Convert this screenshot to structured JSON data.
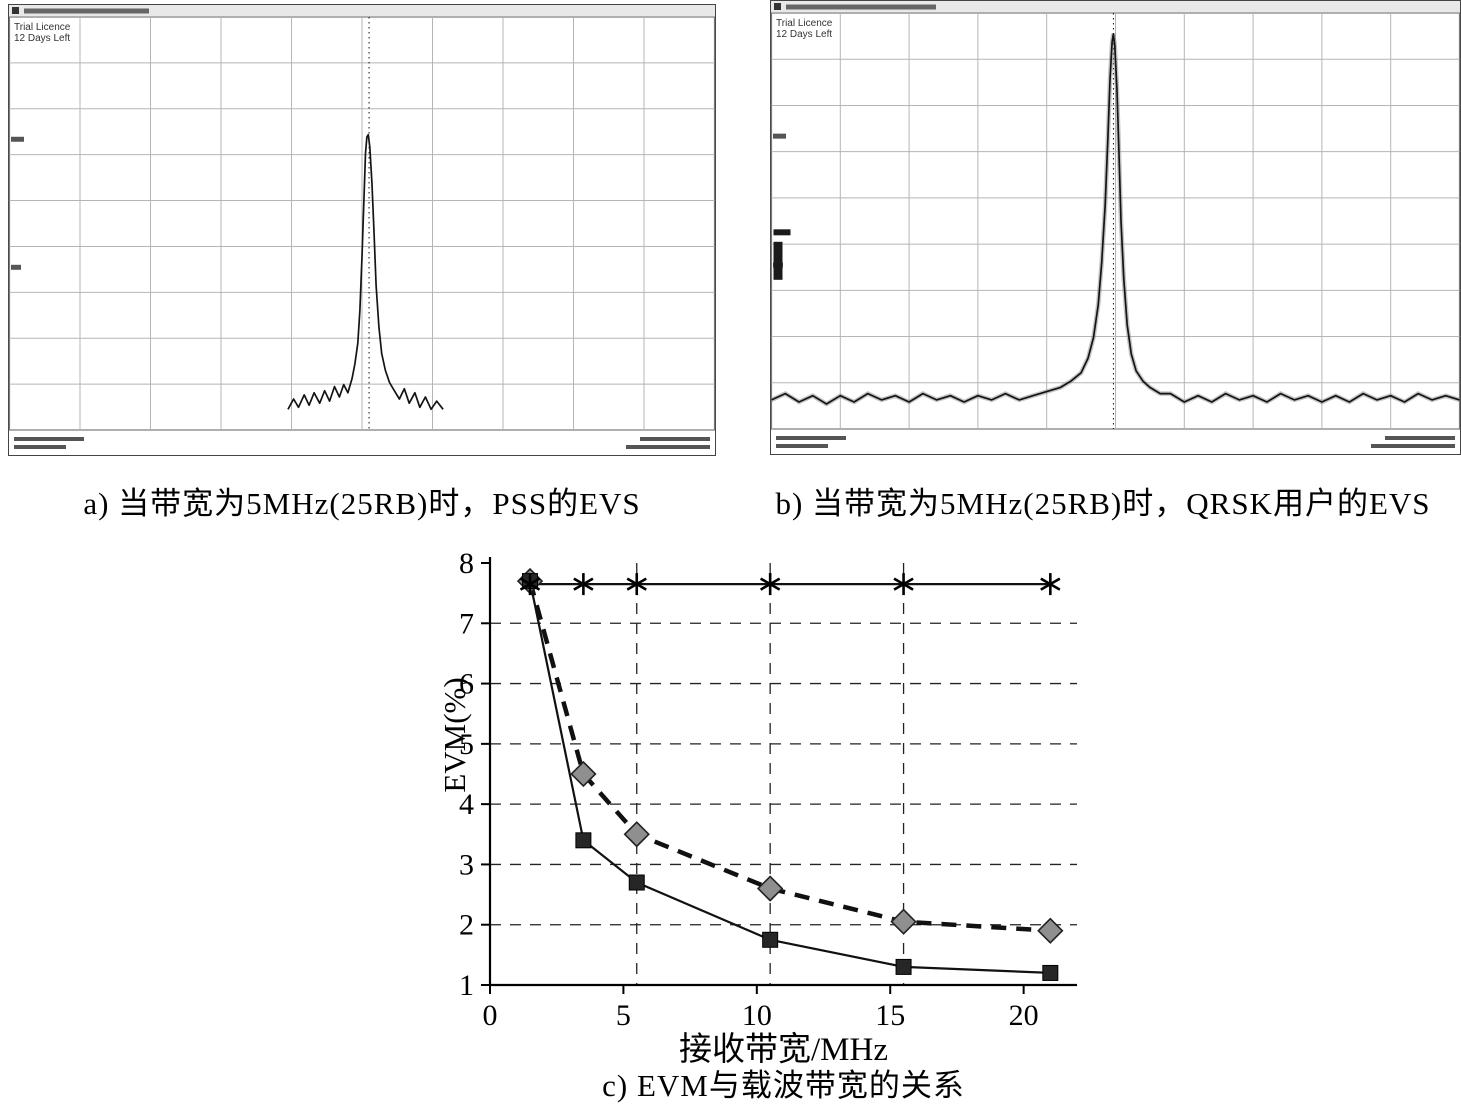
{
  "figure": {
    "captions": {
      "a": "a) 当带宽为5MHz(25RB)时，PSS的EVS",
      "b": "b) 当带宽为5MHz(25RB)时，QRSK用户的EVS",
      "c": "c) EVM与载波带宽的关系"
    }
  },
  "chart_data": [
    {
      "id": "spectrum_a",
      "type": "line",
      "license_text": [
        "Trial Licence",
        "12 Days Left"
      ],
      "grid": {
        "cols": 10,
        "rows": 9
      },
      "marker_x": 0.51,
      "fuzzy": false,
      "blob": false,
      "trace": [
        [
          0.395,
          0.95
        ],
        [
          0.403,
          0.925
        ],
        [
          0.41,
          0.945
        ],
        [
          0.418,
          0.915
        ],
        [
          0.425,
          0.94
        ],
        [
          0.432,
          0.91
        ],
        [
          0.44,
          0.935
        ],
        [
          0.447,
          0.905
        ],
        [
          0.454,
          0.93
        ],
        [
          0.461,
          0.895
        ],
        [
          0.468,
          0.92
        ],
        [
          0.474,
          0.89
        ],
        [
          0.48,
          0.91
        ],
        [
          0.486,
          0.875
        ],
        [
          0.49,
          0.84
        ],
        [
          0.494,
          0.79
        ],
        [
          0.497,
          0.71
        ],
        [
          0.5,
          0.58
        ],
        [
          0.503,
          0.43
        ],
        [
          0.505,
          0.33
        ],
        [
          0.507,
          0.29
        ],
        [
          0.509,
          0.285
        ],
        [
          0.511,
          0.315
        ],
        [
          0.514,
          0.4
        ],
        [
          0.517,
          0.52
        ],
        [
          0.52,
          0.65
        ],
        [
          0.524,
          0.75
        ],
        [
          0.528,
          0.815
        ],
        [
          0.533,
          0.855
        ],
        [
          0.539,
          0.885
        ],
        [
          0.546,
          0.905
        ],
        [
          0.553,
          0.925
        ],
        [
          0.56,
          0.9
        ],
        [
          0.567,
          0.935
        ],
        [
          0.575,
          0.91
        ],
        [
          0.582,
          0.945
        ],
        [
          0.59,
          0.92
        ],
        [
          0.598,
          0.95
        ],
        [
          0.606,
          0.93
        ],
        [
          0.615,
          0.95
        ]
      ]
    },
    {
      "id": "spectrum_b",
      "type": "line",
      "license_text": [
        "Trial Licence",
        "12 Days Left"
      ],
      "grid": {
        "cols": 10,
        "rows": 9
      },
      "marker_x": 0.497,
      "fuzzy": true,
      "blob": true,
      "trace": [
        [
          0.0,
          0.93
        ],
        [
          0.02,
          0.915
        ],
        [
          0.04,
          0.935
        ],
        [
          0.06,
          0.92
        ],
        [
          0.08,
          0.94
        ],
        [
          0.1,
          0.92
        ],
        [
          0.12,
          0.935
        ],
        [
          0.14,
          0.915
        ],
        [
          0.16,
          0.93
        ],
        [
          0.18,
          0.92
        ],
        [
          0.2,
          0.935
        ],
        [
          0.22,
          0.915
        ],
        [
          0.24,
          0.93
        ],
        [
          0.26,
          0.92
        ],
        [
          0.28,
          0.935
        ],
        [
          0.3,
          0.92
        ],
        [
          0.32,
          0.93
        ],
        [
          0.34,
          0.915
        ],
        [
          0.36,
          0.93
        ],
        [
          0.38,
          0.92
        ],
        [
          0.4,
          0.91
        ],
        [
          0.42,
          0.9
        ],
        [
          0.435,
          0.885
        ],
        [
          0.45,
          0.865
        ],
        [
          0.46,
          0.83
        ],
        [
          0.468,
          0.78
        ],
        [
          0.475,
          0.7
        ],
        [
          0.48,
          0.6
        ],
        [
          0.485,
          0.46
        ],
        [
          0.489,
          0.3
        ],
        [
          0.492,
          0.16
        ],
        [
          0.495,
          0.07
        ],
        [
          0.497,
          0.05
        ],
        [
          0.499,
          0.08
        ],
        [
          0.502,
          0.18
        ],
        [
          0.505,
          0.33
        ],
        [
          0.508,
          0.5
        ],
        [
          0.512,
          0.64
        ],
        [
          0.517,
          0.75
        ],
        [
          0.523,
          0.82
        ],
        [
          0.53,
          0.86
        ],
        [
          0.54,
          0.885
        ],
        [
          0.55,
          0.9
        ],
        [
          0.565,
          0.915
        ],
        [
          0.58,
          0.915
        ],
        [
          0.6,
          0.935
        ],
        [
          0.62,
          0.92
        ],
        [
          0.64,
          0.935
        ],
        [
          0.66,
          0.915
        ],
        [
          0.68,
          0.93
        ],
        [
          0.7,
          0.92
        ],
        [
          0.72,
          0.935
        ],
        [
          0.74,
          0.915
        ],
        [
          0.76,
          0.93
        ],
        [
          0.78,
          0.92
        ],
        [
          0.8,
          0.935
        ],
        [
          0.82,
          0.92
        ],
        [
          0.84,
          0.935
        ],
        [
          0.86,
          0.915
        ],
        [
          0.88,
          0.93
        ],
        [
          0.9,
          0.92
        ],
        [
          0.92,
          0.935
        ],
        [
          0.94,
          0.915
        ],
        [
          0.96,
          0.93
        ],
        [
          0.98,
          0.92
        ],
        [
          1.0,
          0.93
        ]
      ]
    },
    {
      "id": "evm_vs_bandwidth",
      "type": "line",
      "title": "c) EVM与载波带宽的关系",
      "xlabel": "接收带宽/MHz",
      "ylabel": "EVM(%)",
      "xlim": [
        0,
        22
      ],
      "ylim": [
        1,
        8
      ],
      "xticks": [
        0,
        5,
        10,
        15,
        20
      ],
      "yticks": [
        1,
        2,
        3,
        4,
        5,
        6,
        7,
        8
      ],
      "grid": {
        "h_dashed": [
          2,
          3,
          4,
          5,
          6,
          7
        ],
        "v_dashed": [
          5.5,
          10.5,
          15.5
        ]
      },
      "x": [
        1.5,
        3.5,
        5.5,
        10.5,
        15.5,
        21
      ],
      "series": [
        {
          "name": "star-series",
          "marker": "asterisk",
          "line": "solid-thin",
          "values": [
            7.65,
            7.65,
            7.65,
            7.65,
            7.65,
            7.65
          ]
        },
        {
          "name": "diamond-series",
          "marker": "diamond",
          "line": "dashed-thick",
          "values": [
            7.7,
            4.5,
            3.5,
            2.6,
            2.05,
            1.9
          ]
        },
        {
          "name": "square-series",
          "marker": "square",
          "line": "solid-thin",
          "values": [
            7.7,
            3.4,
            2.7,
            1.75,
            1.3,
            1.2
          ]
        }
      ],
      "legend": null
    }
  ]
}
